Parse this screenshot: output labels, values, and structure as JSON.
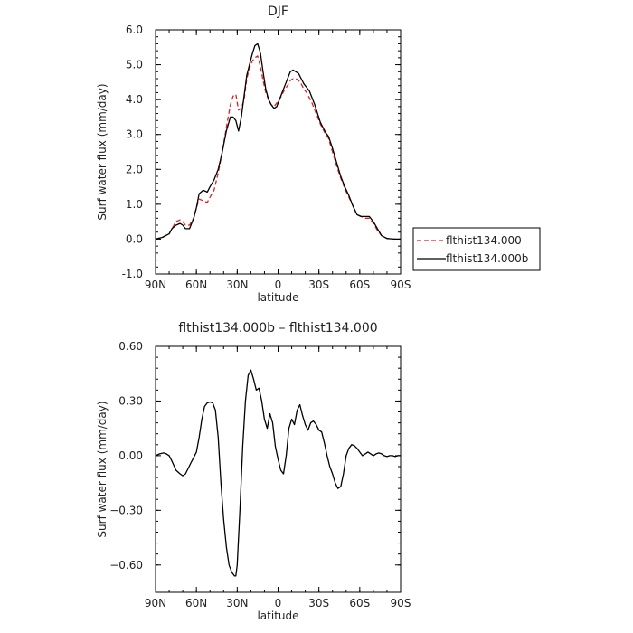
{
  "chart_data": [
    {
      "type": "line",
      "title": "DJF",
      "xlabel": "latitude",
      "ylabel": "Surf water flux (mm/day)",
      "xlim": [
        90,
        -90
      ],
      "ylim": [
        -1.0,
        6.0
      ],
      "xticks": [
        {
          "value": 90,
          "label": "90N"
        },
        {
          "value": 60,
          "label": "60N"
        },
        {
          "value": 30,
          "label": "30N"
        },
        {
          "value": 0,
          "label": "0"
        },
        {
          "value": -30,
          "label": "30S"
        },
        {
          "value": -60,
          "label": "60S"
        },
        {
          "value": -90,
          "label": "90S"
        }
      ],
      "yticks": [
        {
          "value": 6.0,
          "label": "6.0"
        },
        {
          "value": 5.0,
          "label": "5.0"
        },
        {
          "value": 4.0,
          "label": "4.0"
        },
        {
          "value": 3.0,
          "label": "3.0"
        },
        {
          "value": 2.0,
          "label": "2.0"
        },
        {
          "value": 1.0,
          "label": "1.0"
        },
        {
          "value": 0.0,
          "label": "0.0"
        },
        {
          "value": -1.0,
          "label": "-1.0"
        }
      ],
      "legend_position": "right",
      "series": [
        {
          "name": "flthist134.000",
          "color": "#e02020",
          "dash": true,
          "x": [
            90,
            85,
            80,
            78,
            75,
            72,
            70,
            68,
            65,
            62,
            60,
            58,
            55,
            52,
            50,
            47,
            44,
            41,
            38,
            35,
            33,
            31,
            29,
            27,
            25,
            23,
            21,
            19,
            17,
            15,
            13,
            11,
            9,
            7,
            5,
            3,
            1,
            -1,
            -3,
            -5,
            -7,
            -9,
            -11,
            -13,
            -15,
            -17,
            -19,
            -21,
            -23,
            -25,
            -27,
            -29,
            -31,
            -33,
            -35,
            -37,
            -40,
            -43,
            -46,
            -49,
            -52,
            -55,
            -58,
            -61,
            -64,
            -67,
            -70,
            -73,
            -76,
            -80,
            -85,
            -90
          ],
          "y": [
            0.0,
            0.05,
            0.15,
            0.3,
            0.5,
            0.55,
            0.5,
            0.4,
            0.4,
            0.6,
            0.9,
            1.15,
            1.1,
            1.05,
            1.2,
            1.4,
            1.9,
            2.5,
            3.2,
            3.85,
            4.1,
            4.15,
            3.7,
            3.75,
            4.0,
            4.6,
            4.9,
            5.1,
            5.2,
            5.25,
            4.95,
            4.55,
            4.2,
            4.0,
            3.85,
            3.8,
            3.9,
            4.0,
            4.15,
            4.3,
            4.4,
            4.55,
            4.6,
            4.6,
            4.55,
            4.45,
            4.3,
            4.2,
            4.05,
            3.9,
            3.7,
            3.5,
            3.3,
            3.15,
            3.0,
            2.9,
            2.5,
            2.1,
            1.75,
            1.45,
            1.2,
            0.95,
            0.7,
            0.65,
            0.6,
            0.6,
            0.45,
            0.25,
            0.1,
            0.02,
            0.0,
            0.0
          ]
        },
        {
          "name": "flthist134.000b",
          "color": "#000000",
          "dash": false,
          "x": [
            90,
            85,
            80,
            78,
            75,
            72,
            70,
            68,
            65,
            62,
            60,
            58,
            55,
            52,
            50,
            47,
            44,
            41,
            38,
            35,
            33,
            31,
            29,
            27,
            25,
            23,
            21,
            19,
            17,
            15,
            13,
            11,
            9,
            7,
            5,
            3,
            1,
            -1,
            -3,
            -5,
            -7,
            -9,
            -11,
            -13,
            -15,
            -17,
            -19,
            -21,
            -23,
            -25,
            -27,
            -29,
            -31,
            -33,
            -35,
            -37,
            -40,
            -43,
            -46,
            -49,
            -52,
            -55,
            -58,
            -61,
            -64,
            -67,
            -70,
            -73,
            -76,
            -80,
            -85,
            -90
          ],
          "y": [
            0.0,
            0.05,
            0.15,
            0.3,
            0.4,
            0.45,
            0.4,
            0.3,
            0.3,
            0.6,
            0.9,
            1.3,
            1.4,
            1.35,
            1.5,
            1.7,
            2.0,
            2.5,
            3.1,
            3.5,
            3.5,
            3.4,
            3.1,
            3.5,
            4.1,
            4.7,
            5.0,
            5.3,
            5.55,
            5.6,
            5.35,
            4.8,
            4.3,
            4.0,
            3.85,
            3.75,
            3.8,
            4.0,
            4.2,
            4.4,
            4.6,
            4.8,
            4.85,
            4.8,
            4.75,
            4.6,
            4.45,
            4.35,
            4.25,
            4.05,
            3.85,
            3.6,
            3.35,
            3.2,
            3.05,
            2.95,
            2.6,
            2.2,
            1.8,
            1.5,
            1.25,
            0.95,
            0.7,
            0.65,
            0.65,
            0.65,
            0.5,
            0.3,
            0.1,
            0.02,
            0.0,
            0.0
          ]
        }
      ]
    },
    {
      "type": "line",
      "title": "flthist134.000b – flthist134.000",
      "xlabel": "latitude",
      "ylabel": "Surf water flux (mm/day)",
      "xlim": [
        90,
        -90
      ],
      "ylim": [
        -0.75,
        0.6
      ],
      "xticks": [
        {
          "value": 90,
          "label": "90N"
        },
        {
          "value": 60,
          "label": "60N"
        },
        {
          "value": 30,
          "label": "30N"
        },
        {
          "value": 0,
          "label": "0"
        },
        {
          "value": -30,
          "label": "30S"
        },
        {
          "value": -60,
          "label": "60S"
        },
        {
          "value": -90,
          "label": "90S"
        }
      ],
      "yticks": [
        {
          "value": 0.6,
          "label": "0.60"
        },
        {
          "value": 0.3,
          "label": "0.30"
        },
        {
          "value": 0.0,
          "label": "0.00"
        },
        {
          "value": -0.3,
          "label": "−0.30"
        },
        {
          "value": -0.6,
          "label": "−0.60"
        }
      ],
      "series": [
        {
          "name": "",
          "color": "#000000",
          "dash": false,
          "x": [
            90,
            87,
            84,
            82,
            80,
            78,
            75,
            72,
            70,
            68,
            66,
            64,
            62,
            60,
            58,
            56,
            54,
            52,
            50,
            48,
            46,
            44,
            42,
            40,
            38,
            36,
            34,
            32,
            31,
            30,
            28,
            26,
            24,
            22,
            20,
            18,
            16,
            14,
            12,
            10,
            8,
            6,
            4,
            2,
            0,
            -2,
            -4,
            -6,
            -8,
            -10,
            -12,
            -14,
            -16,
            -18,
            -20,
            -22,
            -24,
            -26,
            -28,
            -30,
            -32,
            -34,
            -36,
            -38,
            -40,
            -42,
            -44,
            -46,
            -48,
            -50,
            -52,
            -54,
            -56,
            -58,
            -60,
            -62,
            -64,
            -66,
            -68,
            -70,
            -72,
            -74,
            -76,
            -78,
            -80,
            -82,
            -84,
            -86,
            -88,
            -90
          ],
          "y": [
            0.0,
            0.01,
            0.015,
            0.01,
            0.0,
            -0.03,
            -0.08,
            -0.1,
            -0.11,
            -0.1,
            -0.07,
            -0.04,
            -0.01,
            0.02,
            0.1,
            0.2,
            0.27,
            0.29,
            0.295,
            0.29,
            0.25,
            0.1,
            -0.15,
            -0.35,
            -0.5,
            -0.6,
            -0.64,
            -0.66,
            -0.66,
            -0.6,
            -0.3,
            0.05,
            0.3,
            0.44,
            0.47,
            0.42,
            0.36,
            0.37,
            0.3,
            0.2,
            0.15,
            0.23,
            0.18,
            0.05,
            -0.02,
            -0.08,
            -0.1,
            0.0,
            0.15,
            0.2,
            0.17,
            0.25,
            0.28,
            0.22,
            0.17,
            0.14,
            0.18,
            0.19,
            0.17,
            0.14,
            0.13,
            0.07,
            0.0,
            -0.06,
            -0.1,
            -0.15,
            -0.18,
            -0.17,
            -0.1,
            0.0,
            0.04,
            0.06,
            0.055,
            0.04,
            0.02,
            0.0,
            0.01,
            0.02,
            0.01,
            0.0,
            0.01,
            0.015,
            0.01,
            0.0,
            -0.005,
            0.0,
            0.0,
            -0.005,
            0.0,
            0.0
          ]
        }
      ]
    }
  ]
}
